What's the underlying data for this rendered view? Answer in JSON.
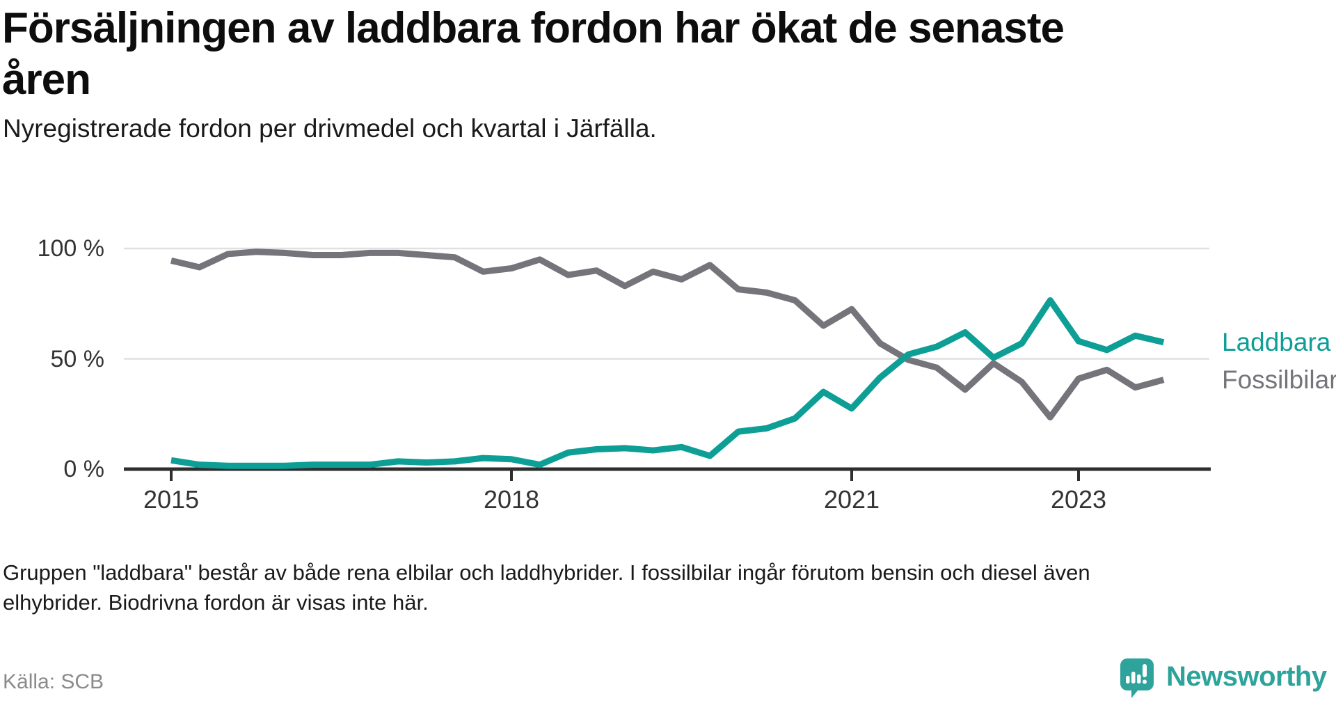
{
  "header": {
    "title_lines": [
      "Försäljningen av laddbara fordon har ökat de senaste",
      "åren"
    ],
    "subtitle": "Nyregistrerade fordon per drivmedel och kvartal i Järfälla."
  },
  "chart_data": {
    "type": "line",
    "title": "Försäljningen av laddbara fordon har ökat de senaste åren",
    "subtitle": "Nyregistrerade fordon per drivmedel och kvartal i Järfälla.",
    "unit": "percent",
    "ylim": [
      0,
      100
    ],
    "grid": true,
    "legend_position": "right-end-of-lines",
    "categories": [
      "2015 Q1",
      "2015 Q2",
      "2015 Q3",
      "2015 Q4",
      "2016 Q1",
      "2016 Q2",
      "2016 Q3",
      "2016 Q4",
      "2017 Q1",
      "2017 Q2",
      "2017 Q3",
      "2017 Q4",
      "2018 Q1",
      "2018 Q2",
      "2018 Q3",
      "2018 Q4",
      "2019 Q1",
      "2019 Q2",
      "2019 Q3",
      "2019 Q4",
      "2020 Q1",
      "2020 Q2",
      "2020 Q3",
      "2020 Q4",
      "2021 Q1",
      "2021 Q2",
      "2021 Q3",
      "2021 Q4",
      "2022 Q1",
      "2022 Q2",
      "2022 Q3",
      "2022 Q4",
      "2023 Q1",
      "2023 Q2",
      "2023 Q3",
      "2023 Q4"
    ],
    "series": [
      {
        "name": "Laddbara",
        "color": "#0d9e96",
        "values": [
          4,
          2,
          1.5,
          1.5,
          1.5,
          2,
          2,
          2,
          3.5,
          3,
          3.5,
          5,
          4.5,
          2,
          7.5,
          9,
          9.5,
          8.5,
          10,
          6,
          17,
          18.5,
          23,
          35,
          27.5,
          41.5,
          52,
          55.5,
          62,
          50.5,
          57,
          76.5,
          58,
          54,
          60.5,
          57.5
        ]
      },
      {
        "name": "Fossilbilar",
        "color": "#75747a",
        "values": [
          94.5,
          91.5,
          97.5,
          98.5,
          98,
          97,
          97,
          98,
          98,
          97,
          96,
          89.5,
          91,
          95,
          88,
          90,
          83,
          89.5,
          86,
          92.5,
          81.5,
          80,
          76.5,
          65,
          72.5,
          57,
          49.5,
          46,
          36,
          48,
          39.5,
          23.5,
          41,
          45,
          37,
          40.5
        ]
      }
    ],
    "yticks": [
      {
        "label": "100 %",
        "value": 100
      },
      {
        "label": "50 %",
        "value": 50
      },
      {
        "label": "0 %",
        "value": 0
      }
    ],
    "xticks": [
      {
        "label": "2015",
        "index": 0
      },
      {
        "label": "2018",
        "index": 12
      },
      {
        "label": "2021",
        "index": 24
      },
      {
        "label": "2023",
        "index": 32
      }
    ]
  },
  "footnote": {
    "lines": [
      "Gruppen \"laddbara\" består av både rena elbilar och laddhybrider. I fossilbilar ingår förutom bensin och diesel även",
      "elhybrider. Biodrivna fordon är visas inte här."
    ]
  },
  "source": {
    "label": "Källa: SCB"
  },
  "logo": {
    "text": "Newsworthy",
    "color": "#2ea39b"
  }
}
